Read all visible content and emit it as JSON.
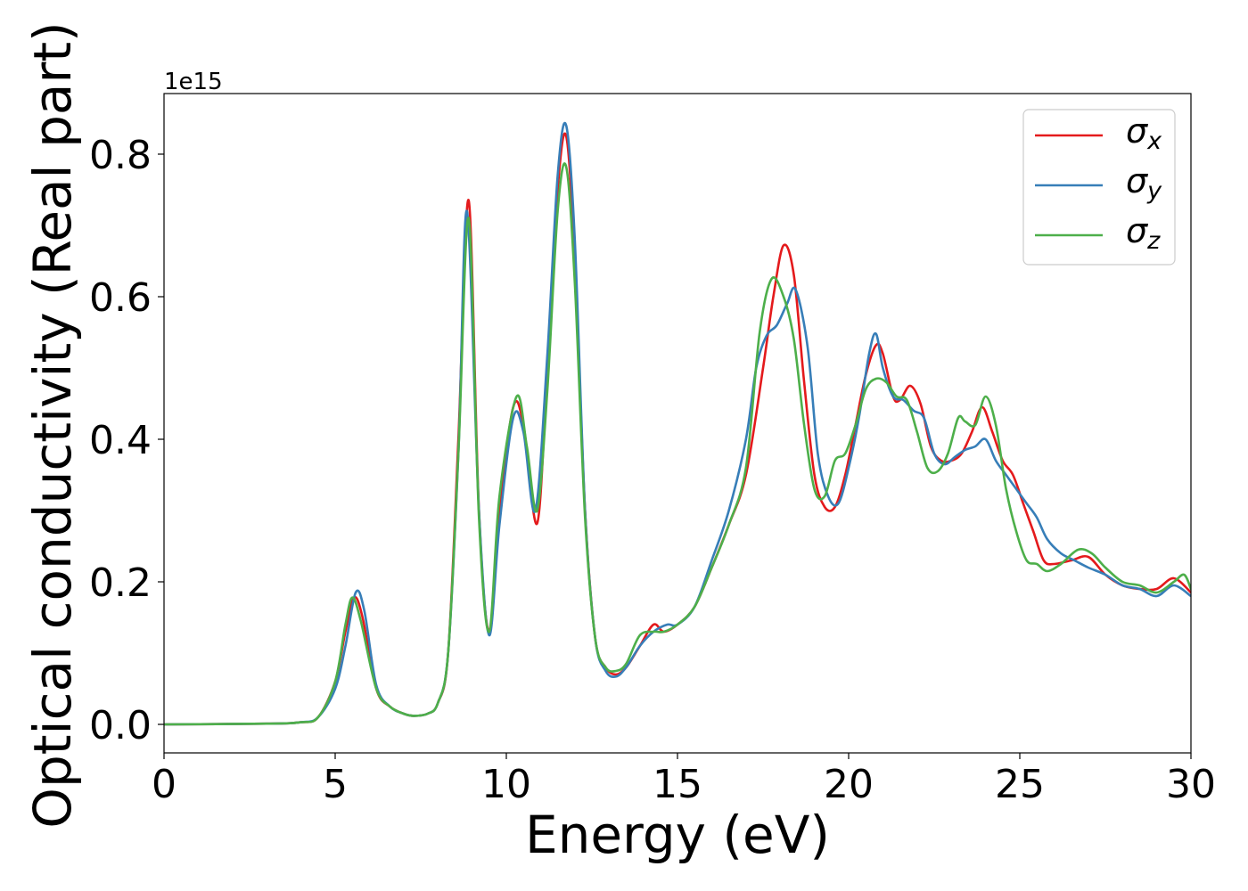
{
  "chart_data": {
    "type": "line",
    "xlabel": "Energy (eV)",
    "ylabel": "Optical conductivity (Real part)",
    "y_offset_label": "1e15",
    "y_multiplier": 1000000000000000.0,
    "xlim": [
      0,
      30
    ],
    "ylim": [
      -0.04,
      0.885
    ],
    "xticks": [
      0,
      5,
      10,
      15,
      20,
      25,
      30
    ],
    "xtick_labels": [
      "0",
      "5",
      "10",
      "15",
      "20",
      "25",
      "30"
    ],
    "yticks": [
      0.0,
      0.2,
      0.4,
      0.6,
      0.8
    ],
    "ytick_labels": [
      "0.0",
      "0.2",
      "0.4",
      "0.6",
      "0.8"
    ],
    "grid": false,
    "legend_position": "top-right",
    "series": [
      {
        "name": "σx",
        "symbol": "σ",
        "subscript": "x",
        "color": "#e41a1c",
        "x": [
          0,
          3,
          4,
          4.5,
          5,
          5.3,
          5.55,
          5.8,
          6.2,
          6.6,
          7,
          7.3,
          7.7,
          8,
          8.3,
          8.6,
          8.9,
          9.2,
          9.5,
          9.8,
          10.2,
          10.5,
          10.9,
          11.2,
          11.5,
          11.75,
          12,
          12.3,
          12.6,
          12.9,
          13.2,
          13.5,
          13.9,
          14.3,
          14.6,
          15,
          15.5,
          16,
          16.5,
          17,
          17.5,
          17.8,
          18.1,
          18.4,
          18.7,
          19,
          19.3,
          19.6,
          19.9,
          20.2,
          20.5,
          20.8,
          21,
          21.3,
          21.5,
          21.8,
          22.1,
          22.4,
          22.7,
          23,
          23.3,
          23.6,
          23.9,
          24.2,
          24.5,
          24.8,
          25.1,
          25.4,
          25.7,
          26,
          26.5,
          27,
          27.5,
          28,
          28.5,
          29,
          29.5,
          30
        ],
        "y": [
          0,
          0.001,
          0.003,
          0.01,
          0.06,
          0.13,
          0.178,
          0.15,
          0.05,
          0.025,
          0.015,
          0.012,
          0.015,
          0.03,
          0.1,
          0.4,
          0.735,
          0.3,
          0.13,
          0.3,
          0.445,
          0.42,
          0.282,
          0.5,
          0.75,
          0.825,
          0.65,
          0.3,
          0.12,
          0.08,
          0.07,
          0.08,
          0.11,
          0.14,
          0.13,
          0.14,
          0.165,
          0.22,
          0.28,
          0.35,
          0.5,
          0.6,
          0.672,
          0.63,
          0.48,
          0.35,
          0.305,
          0.305,
          0.35,
          0.42,
          0.49,
          0.532,
          0.52,
          0.46,
          0.455,
          0.475,
          0.45,
          0.39,
          0.37,
          0.37,
          0.38,
          0.41,
          0.445,
          0.41,
          0.37,
          0.35,
          0.31,
          0.27,
          0.23,
          0.225,
          0.23,
          0.235,
          0.21,
          0.195,
          0.19,
          0.19,
          0.205,
          0.185
        ]
      },
      {
        "name": "σy",
        "symbol": "σ",
        "subscript": "y",
        "color": "#377eb8",
        "x": [
          0,
          3,
          4,
          4.5,
          5,
          5.3,
          5.6,
          5.85,
          6.2,
          6.6,
          7,
          7.3,
          7.7,
          8,
          8.3,
          8.6,
          8.85,
          9.2,
          9.5,
          9.8,
          10.2,
          10.5,
          10.85,
          11.2,
          11.5,
          11.75,
          12,
          12.3,
          12.6,
          12.9,
          13.2,
          13.5,
          13.9,
          14.3,
          14.7,
          15,
          15.5,
          16,
          16.5,
          17,
          17.3,
          17.6,
          17.9,
          18.2,
          18.45,
          18.8,
          19.1,
          19.4,
          19.7,
          20,
          20.3,
          20.6,
          20.8,
          21,
          21.3,
          21.6,
          21.9,
          22.2,
          22.5,
          22.8,
          23.1,
          23.4,
          23.7,
          24,
          24.3,
          24.6,
          24.9,
          25.2,
          25.5,
          25.8,
          26.2,
          26.6,
          27,
          27.5,
          28,
          28.5,
          29,
          29.5,
          30
        ],
        "y": [
          0,
          0.001,
          0.003,
          0.01,
          0.05,
          0.11,
          0.185,
          0.16,
          0.055,
          0.025,
          0.015,
          0.012,
          0.015,
          0.03,
          0.1,
          0.38,
          0.72,
          0.3,
          0.125,
          0.28,
          0.43,
          0.41,
          0.3,
          0.52,
          0.77,
          0.84,
          0.68,
          0.3,
          0.12,
          0.075,
          0.067,
          0.08,
          0.11,
          0.13,
          0.14,
          0.14,
          0.165,
          0.23,
          0.3,
          0.4,
          0.5,
          0.545,
          0.56,
          0.59,
          0.61,
          0.53,
          0.38,
          0.32,
          0.31,
          0.36,
          0.43,
          0.52,
          0.548,
          0.5,
          0.46,
          0.455,
          0.44,
          0.43,
          0.38,
          0.365,
          0.375,
          0.385,
          0.39,
          0.4,
          0.37,
          0.35,
          0.33,
          0.31,
          0.29,
          0.26,
          0.24,
          0.23,
          0.22,
          0.21,
          0.195,
          0.19,
          0.18,
          0.195,
          0.18
        ]
      },
      {
        "name": "σz",
        "symbol": "σ",
        "subscript": "z",
        "color": "#4daf4a",
        "x": [
          0,
          3,
          4,
          4.5,
          5,
          5.3,
          5.5,
          5.75,
          6.2,
          6.6,
          7,
          7.3,
          7.7,
          8,
          8.3,
          8.6,
          8.9,
          9.2,
          9.5,
          9.8,
          10.3,
          10.6,
          10.9,
          11.2,
          11.5,
          11.75,
          12,
          12.3,
          12.6,
          12.9,
          13.2,
          13.5,
          13.9,
          14.3,
          14.6,
          15,
          15.5,
          16,
          16.5,
          17,
          17.4,
          17.75,
          18.1,
          18.4,
          18.7,
          19,
          19.3,
          19.6,
          19.9,
          20.2,
          20.5,
          20.8,
          21.1,
          21.4,
          21.7,
          22,
          22.3,
          22.6,
          22.9,
          23.2,
          23.4,
          23.7,
          24,
          24.3,
          24.6,
          24.9,
          25.2,
          25.5,
          25.8,
          26.2,
          26.7,
          27.1,
          27.5,
          28,
          28.5,
          29,
          29.5,
          29.8,
          30
        ],
        "y": [
          0,
          0.001,
          0.003,
          0.01,
          0.06,
          0.14,
          0.178,
          0.145,
          0.05,
          0.025,
          0.015,
          0.012,
          0.015,
          0.03,
          0.1,
          0.38,
          0.71,
          0.29,
          0.13,
          0.32,
          0.46,
          0.39,
          0.3,
          0.47,
          0.72,
          0.782,
          0.62,
          0.29,
          0.12,
          0.08,
          0.075,
          0.085,
          0.125,
          0.13,
          0.13,
          0.14,
          0.165,
          0.22,
          0.28,
          0.36,
          0.55,
          0.625,
          0.6,
          0.54,
          0.42,
          0.33,
          0.32,
          0.37,
          0.38,
          0.42,
          0.47,
          0.485,
          0.48,
          0.46,
          0.455,
          0.41,
          0.36,
          0.355,
          0.38,
          0.43,
          0.425,
          0.42,
          0.46,
          0.42,
          0.33,
          0.27,
          0.23,
          0.225,
          0.215,
          0.225,
          0.245,
          0.24,
          0.22,
          0.2,
          0.195,
          0.185,
          0.2,
          0.21,
          0.19
        ]
      }
    ]
  }
}
